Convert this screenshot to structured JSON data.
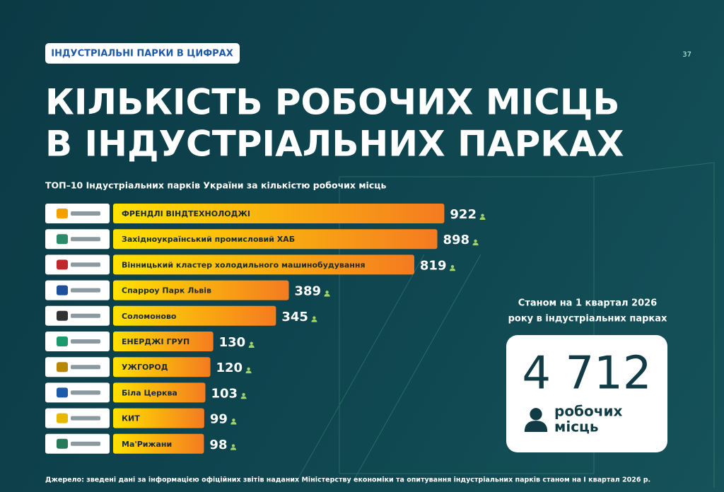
{
  "badge": "ІНДУСТРІАЛЬНІ ПАРКИ В ЦИФРАХ",
  "page_number": "37",
  "note": [
    "Станом на 1 квартал 2026",
    "року в індустріальних парках"
  ],
  "total": "4 712",
  "total_label": [
    "робочих",
    "місць"
  ],
  "source": "Джерело: зведені дані за інформацією офіційних звітів наданих Міністерству економіки та опитування індустріальних парків станом на I квартал 2026 р.",
  "chart_data": {
    "type": "bar",
    "title": [
      "КІЛЬКІСТЬ РОБОЧИХ МІСЦЬ",
      "В ІНДУСТРІАЛЬНИХ ПАРКАХ"
    ],
    "subtitle": "ТОП–10 Індустріальних парків України за кількістю робочих місць",
    "categories": [
      "ФРЕНДЛІ ВІНДТЕХНОЛОДЖІ",
      "Західноукраїнський промисловий ХАБ",
      "Вінницький кластер холодильного машинобудування",
      "Спарроу Парк Львів",
      "Соломоново",
      "ЕНЕРДЖІ ГРУП",
      "УЖГОРОД",
      "Біла Церква",
      "КИТ",
      "Ма'Рижани"
    ],
    "values": [
      922,
      898,
      819,
      389,
      345,
      130,
      120,
      103,
      99,
      98
    ],
    "colors": [
      "#ffe200",
      "#f47b20"
    ]
  }
}
